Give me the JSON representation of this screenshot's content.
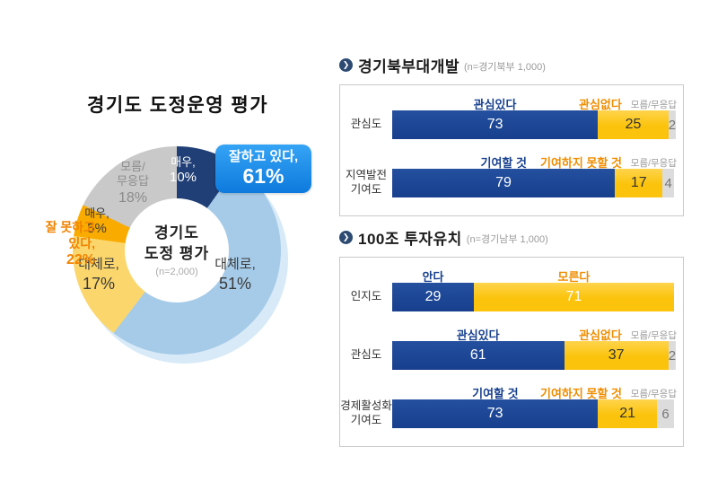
{
  "icons": {
    "section_bullet": "❯"
  },
  "colors": {
    "bar_positive": "#1a4496",
    "bar_negative": "#fbc30b",
    "bar_dontknow": "#dcdcdc",
    "label_positive": "#17408f",
    "label_negative": "#ef8d00",
    "label_dontknow": "#9a9a9a",
    "callout_blue": "#1b8be8",
    "callout_negative_orange": "#f08300"
  },
  "chart_data": [
    {
      "type": "pie",
      "subtype": "donut",
      "title": "경기도 도정운영 평가",
      "center": {
        "line1": "경기도",
        "line2": "도정 평가",
        "n": "(n=2,000)"
      },
      "segments": [
        {
          "label": "매우,",
          "pct": "10%",
          "value": 10,
          "color": "#203f76",
          "group": "positive"
        },
        {
          "label": "대체로,",
          "pct": "51%",
          "value": 51,
          "color": "#a6cbe8",
          "group": "positive"
        },
        {
          "label": "대체로,",
          "pct": "17%",
          "value": 17,
          "color": "#fbd66c",
          "group": "negative"
        },
        {
          "label": "매우,",
          "pct": "5%",
          "value": 5,
          "color": "#f9ab00",
          "group": "negative"
        },
        {
          "label": "모름/",
          "label2": "무응답",
          "pct": "18%",
          "value": 18,
          "color": "#c9c9c9",
          "group": "dontknow"
        }
      ],
      "callout_positive": {
        "text": "잘하고 있다,",
        "pct": "61%"
      },
      "callout_negative": {
        "line1": "잘 못하고",
        "line2": "있다,",
        "pct": "22%"
      }
    },
    {
      "type": "bar",
      "orientation": "horizontal",
      "stacked": true,
      "xlim": [
        0,
        100
      ],
      "title": "경기북부대개발",
      "sample": "(n=경기북부 1,000)",
      "rows": [
        {
          "category": "관심도",
          "category_lines": [
            "관심도"
          ],
          "segments": [
            {
              "label": "관심있다",
              "value": 73,
              "role": "pos"
            },
            {
              "label": "관심없다",
              "value": 25,
              "role": "neg"
            },
            {
              "label": "모름/무응답",
              "value": 2,
              "role": "dk"
            }
          ]
        },
        {
          "category": "지역발전 기여도",
          "category_lines": [
            "지역발전",
            "기여도"
          ],
          "segments": [
            {
              "label": "기여할 것",
              "value": 79,
              "role": "pos"
            },
            {
              "label": "기여하지 못할 것",
              "value": 17,
              "role": "neg"
            },
            {
              "label": "모름/무응답",
              "value": 4,
              "role": "dk"
            }
          ]
        }
      ]
    },
    {
      "type": "bar",
      "orientation": "horizontal",
      "stacked": true,
      "xlim": [
        0,
        100
      ],
      "title": "100조 투자유치",
      "sample": "(n=경기남부 1,000)",
      "rows": [
        {
          "category": "인지도",
          "category_lines": [
            "인지도"
          ],
          "segments": [
            {
              "label": "안다",
              "value": 29,
              "role": "pos"
            },
            {
              "label": "모른다",
              "value": 71,
              "role": "neg"
            }
          ]
        },
        {
          "category": "관심도",
          "category_lines": [
            "관심도"
          ],
          "segments": [
            {
              "label": "관심있다",
              "value": 61,
              "role": "pos"
            },
            {
              "label": "관심없다",
              "value": 37,
              "role": "neg"
            },
            {
              "label": "모름/무응답",
              "value": 2,
              "role": "dk"
            }
          ]
        },
        {
          "category": "경제활성화 기여도",
          "category_lines": [
            "경제활성화",
            "기여도"
          ],
          "segments": [
            {
              "label": "기여할 것",
              "value": 73,
              "role": "pos"
            },
            {
              "label": "기여하지 못할 것",
              "value": 21,
              "role": "neg"
            },
            {
              "label": "모름/무응답",
              "value": 6,
              "role": "dk"
            }
          ]
        }
      ]
    }
  ]
}
